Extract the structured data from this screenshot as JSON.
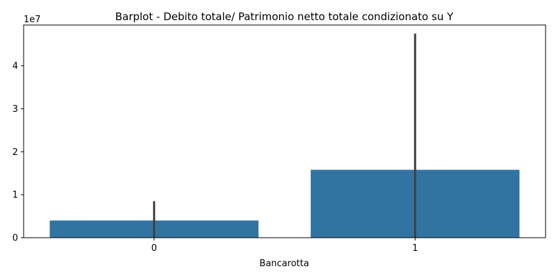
{
  "chart_data": {
    "type": "bar",
    "title": "Barplot - Debito totale/ Patrimonio netto totale condizionato su Y",
    "xlabel": "Bancarotta",
    "ylabel": "",
    "categories": [
      "0",
      "1"
    ],
    "values": [
      4000000,
      15800000
    ],
    "error_bars": [
      {
        "low": 0,
        "high": 8500000
      },
      {
        "low": 0,
        "high": 47500000
      }
    ],
    "ylim": [
      0,
      49500000
    ],
    "yticks": [
      0,
      10000000,
      20000000,
      30000000,
      40000000
    ],
    "ytick_labels": [
      "0",
      "1",
      "2",
      "3",
      "4"
    ],
    "y_offset_label": "1e7",
    "bar_color": "#3274a1",
    "errorbar_color": "#3f3f3f",
    "grid": false
  }
}
